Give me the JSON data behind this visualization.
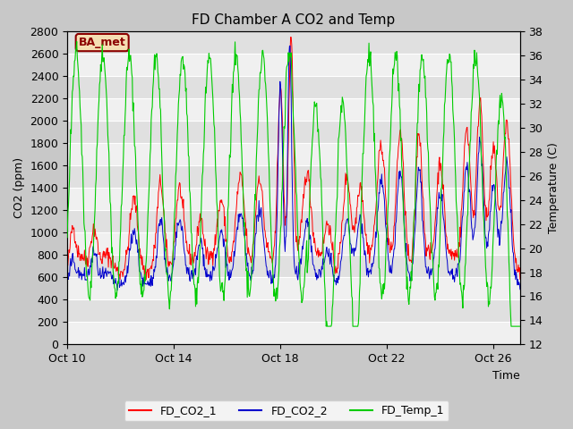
{
  "title": "FD Chamber A CO2 and Temp",
  "xlabel": "Time",
  "ylabel_left": "CO2 (ppm)",
  "ylabel_right": "Temperature (C)",
  "ylim_left": [
    0,
    2800
  ],
  "ylim_right": [
    12,
    38
  ],
  "yticks_left": [
    0,
    200,
    400,
    600,
    800,
    1000,
    1200,
    1400,
    1600,
    1800,
    2000,
    2200,
    2400,
    2600,
    2800
  ],
  "yticks_right": [
    12,
    14,
    16,
    18,
    20,
    22,
    24,
    26,
    28,
    30,
    32,
    34,
    36,
    38
  ],
  "xtick_labels": [
    "Oct 10",
    "Oct 14",
    "Oct 18",
    "Oct 22",
    "Oct 26"
  ],
  "annotation_text": "BA_met",
  "annotation_color": "#8B0000",
  "annotation_bg": "#F5DEB3",
  "line_colors": [
    "#FF0000",
    "#0000CD",
    "#00CC00"
  ],
  "line_labels": [
    "FD_CO2_1",
    "FD_CO2_2",
    "FD_Temp_1"
  ],
  "bg_color": "#C8C8C8",
  "plot_bg_light": "#DCDCDC",
  "plot_bg_dark": "#F0F0F0",
  "band_color_a": "#E8E8E8",
  "band_color_b": "#F8F8F8",
  "grid_color": "#FFFFFF",
  "title_fontsize": 11,
  "axis_fontsize": 9,
  "legend_fontsize": 9,
  "tick_fontsize": 9
}
